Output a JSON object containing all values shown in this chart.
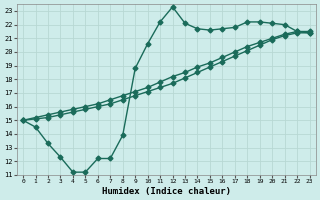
{
  "xlabel": "Humidex (Indice chaleur)",
  "bg_color": "#ceecea",
  "line_color": "#1a6b5a",
  "grid_color": "#b8d8d4",
  "xlim": [
    -0.5,
    23.5
  ],
  "ylim": [
    11,
    23.5
  ],
  "yticks": [
    11,
    12,
    13,
    14,
    15,
    16,
    17,
    18,
    19,
    20,
    21,
    22,
    23
  ],
  "xticks": [
    0,
    1,
    2,
    3,
    4,
    5,
    6,
    7,
    8,
    9,
    10,
    11,
    12,
    13,
    14,
    15,
    16,
    17,
    18,
    19,
    20,
    21,
    22,
    23
  ],
  "line1_x": [
    0,
    1,
    2,
    3,
    4,
    5,
    6,
    7,
    8,
    9,
    10,
    11,
    12,
    13,
    14,
    15,
    16,
    17,
    18,
    19,
    20,
    21,
    22,
    23
  ],
  "line1_y": [
    15.0,
    14.5,
    13.3,
    12.3,
    11.2,
    11.2,
    12.2,
    12.2,
    13.9,
    18.8,
    20.6,
    22.2,
    23.3,
    22.1,
    21.7,
    21.6,
    21.7,
    21.8,
    22.2,
    22.2,
    22.1,
    22.0,
    21.5,
    21.4
  ],
  "line2_x": [
    0,
    1,
    2,
    3,
    4,
    5,
    6,
    7,
    8,
    9,
    10,
    11,
    12,
    13,
    14,
    15,
    16,
    17,
    18,
    19,
    20,
    21,
    22,
    23
  ],
  "line2_y": [
    15.0,
    15.2,
    15.4,
    15.6,
    15.8,
    16.0,
    16.2,
    16.5,
    16.8,
    17.1,
    17.4,
    17.8,
    18.2,
    18.5,
    18.9,
    19.2,
    19.6,
    20.0,
    20.4,
    20.7,
    21.0,
    21.3,
    21.5,
    21.5
  ],
  "line3_x": [
    0,
    1,
    2,
    3,
    4,
    5,
    6,
    7,
    8,
    9,
    10,
    11,
    12,
    13,
    14,
    15,
    16,
    17,
    18,
    19,
    20,
    21,
    22,
    23
  ],
  "line3_y": [
    15.0,
    15.1,
    15.2,
    15.4,
    15.6,
    15.8,
    16.0,
    16.2,
    16.5,
    16.8,
    17.1,
    17.4,
    17.7,
    18.1,
    18.5,
    18.9,
    19.3,
    19.7,
    20.1,
    20.5,
    20.9,
    21.2,
    21.4,
    21.4
  ],
  "marker_size": 2.5,
  "linewidth": 1.0
}
